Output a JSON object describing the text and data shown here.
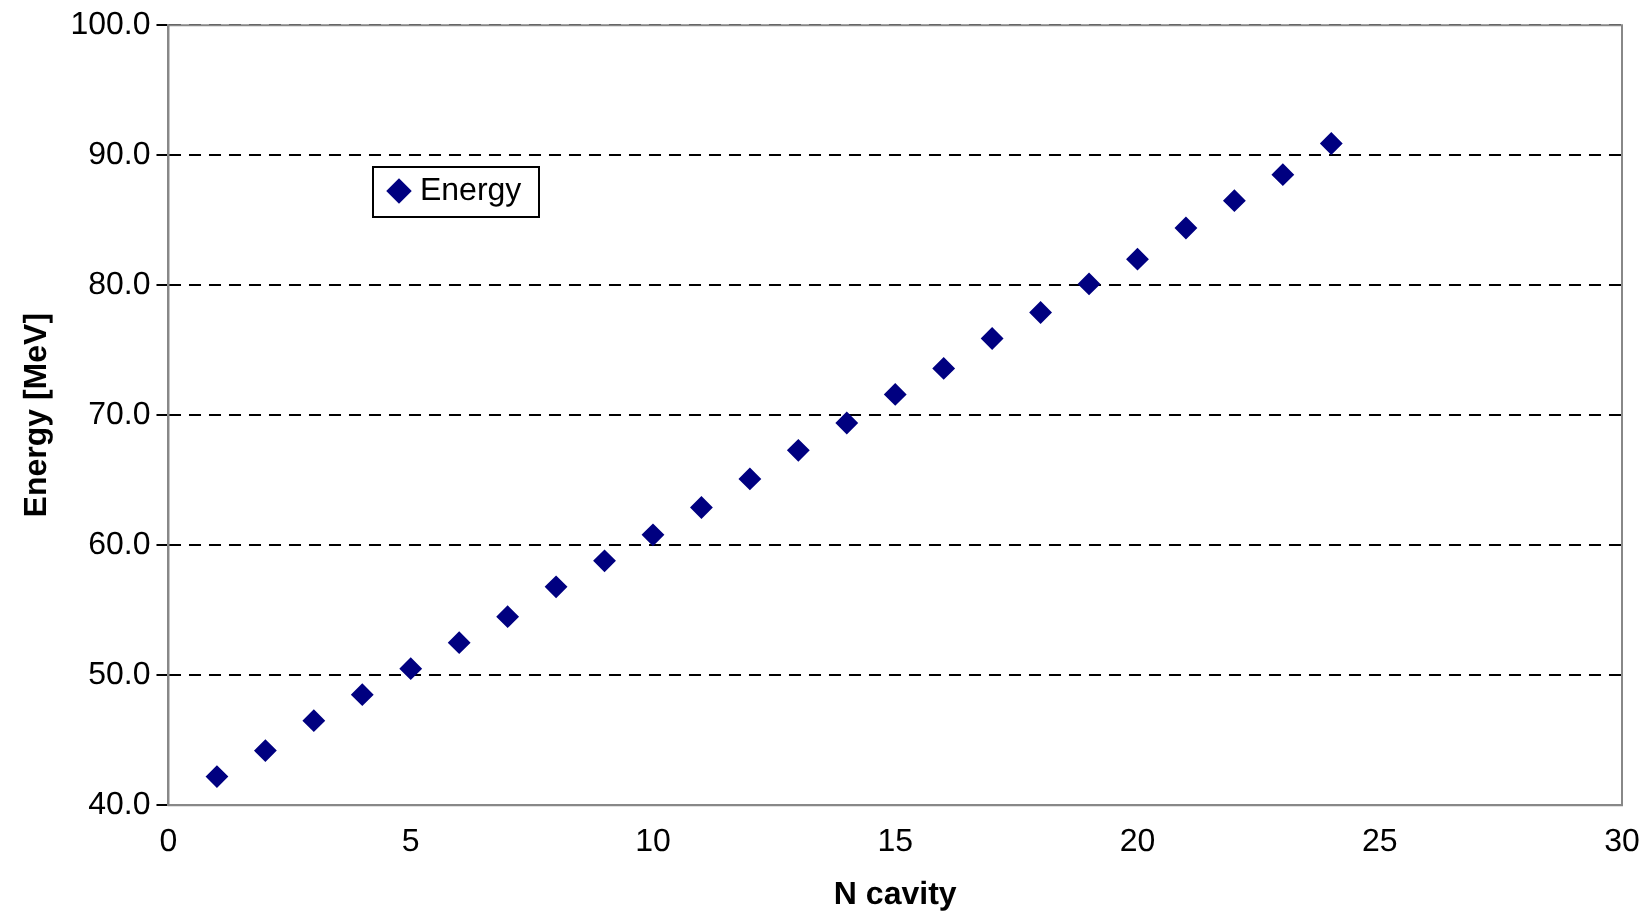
{
  "chart_data": {
    "type": "scatter",
    "xlabel": "N cavity",
    "ylabel": "Energy [MeV]",
    "x": [
      1,
      2,
      3,
      4,
      5,
      6,
      7,
      8,
      9,
      10,
      11,
      12,
      13,
      14,
      15,
      16,
      17,
      18,
      19,
      20,
      21,
      22,
      23,
      24
    ],
    "series": [
      {
        "name": "Energy",
        "color": "#000080",
        "values": [
          42.2,
          44.2,
          46.5,
          48.5,
          50.5,
          52.5,
          54.5,
          56.8,
          58.8,
          60.8,
          62.9,
          65.1,
          67.3,
          69.4,
          71.6,
          73.6,
          75.9,
          77.9,
          80.1,
          82.0,
          84.4,
          86.5,
          88.5,
          90.9
        ]
      }
    ],
    "xlim": [
      0,
      30
    ],
    "xticks": [
      0,
      5,
      10,
      15,
      20,
      25,
      30
    ],
    "ylim": [
      40,
      100
    ],
    "yticks": [
      {
        "value": 40,
        "label": "40.0"
      },
      {
        "value": 50,
        "label": "50.0"
      },
      {
        "value": 60,
        "label": "60.0"
      },
      {
        "value": 70,
        "label": "70.0"
      },
      {
        "value": 80,
        "label": "80.0"
      },
      {
        "value": 90,
        "label": "90.0"
      },
      {
        "value": 100,
        "label": "100.0"
      }
    ],
    "grid": "y",
    "legend": "top left",
    "marker": "diamond"
  }
}
